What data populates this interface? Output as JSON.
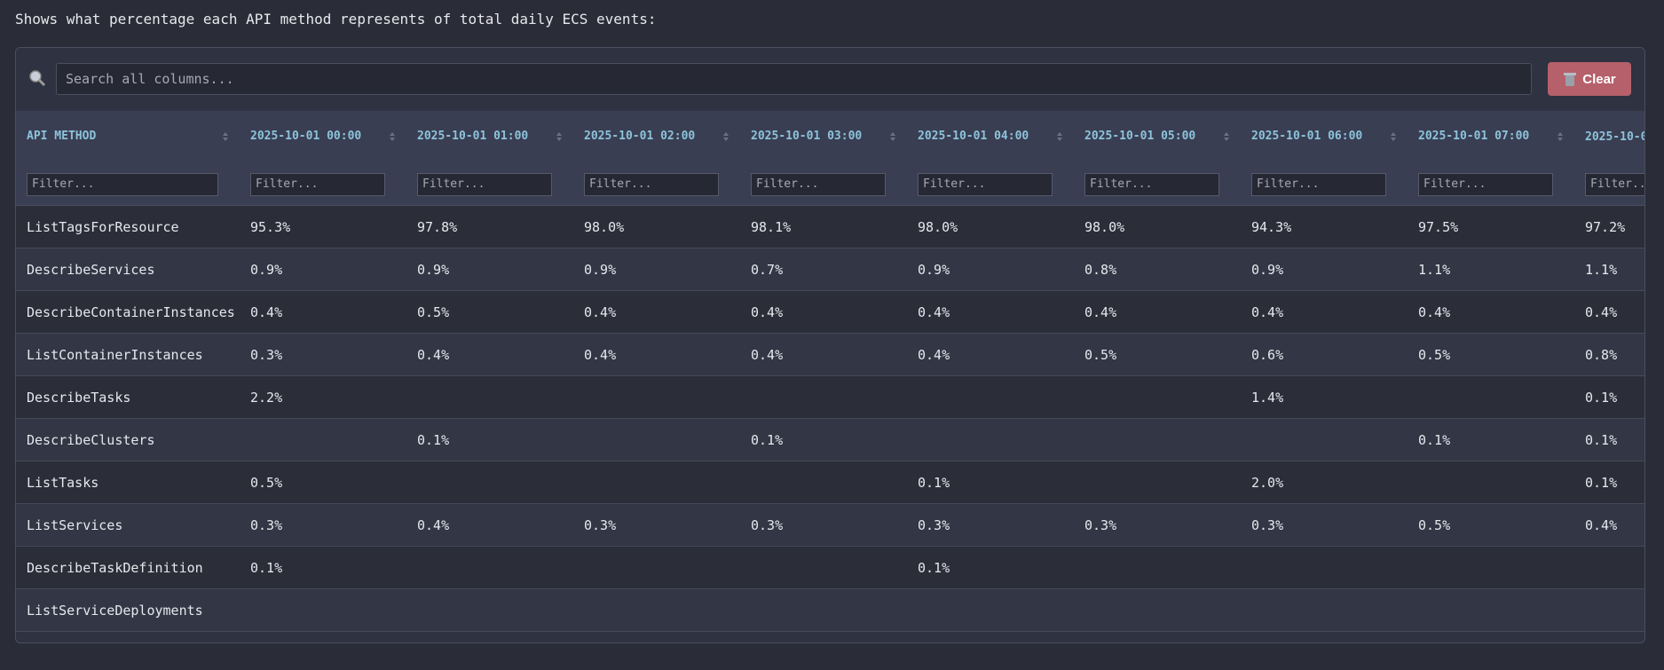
{
  "description": "Shows what percentage each API method represents of total daily ECS events:",
  "search": {
    "placeholder": "Search all columns...",
    "button": "Clear"
  },
  "table": {
    "headers": [
      "API METHOD",
      "2025-10-01 00:00",
      "2025-10-01 01:00",
      "2025-10-01 02:00",
      "2025-10-01 03:00",
      "2025-10-01 04:00",
      "2025-10-01 05:00",
      "2025-10-01 06:00",
      "2025-10-01 07:00",
      "2025-10-0"
    ],
    "filter_placeholder": "Filter...",
    "rows": [
      [
        "ListTagsForResource",
        "95.3%",
        "97.8%",
        "98.0%",
        "98.1%",
        "98.0%",
        "98.0%",
        "94.3%",
        "97.5%",
        "97.2%"
      ],
      [
        "DescribeServices",
        "0.9%",
        "0.9%",
        "0.9%",
        "0.7%",
        "0.9%",
        "0.8%",
        "0.9%",
        "1.1%",
        "1.1%"
      ],
      [
        "DescribeContainerInstances",
        "0.4%",
        "0.5%",
        "0.4%",
        "0.4%",
        "0.4%",
        "0.4%",
        "0.4%",
        "0.4%",
        "0.4%"
      ],
      [
        "ListContainerInstances",
        "0.3%",
        "0.4%",
        "0.4%",
        "0.4%",
        "0.4%",
        "0.5%",
        "0.6%",
        "0.5%",
        "0.8%"
      ],
      [
        "DescribeTasks",
        "2.2%",
        null,
        null,
        null,
        null,
        null,
        "1.4%",
        null,
        "0.1%"
      ],
      [
        "DescribeClusters",
        null,
        "0.1%",
        null,
        "0.1%",
        null,
        null,
        null,
        "0.1%",
        "0.1%"
      ],
      [
        "ListTasks",
        "0.5%",
        null,
        null,
        null,
        "0.1%",
        null,
        "2.0%",
        null,
        "0.1%"
      ],
      [
        "ListServices",
        "0.3%",
        "0.4%",
        "0.3%",
        "0.3%",
        "0.3%",
        "0.3%",
        "0.3%",
        "0.5%",
        "0.4%"
      ],
      [
        "DescribeTaskDefinition",
        "0.1%",
        null,
        null,
        null,
        "0.1%",
        null,
        null,
        null,
        null
      ],
      [
        "ListServiceDeployments",
        null,
        null,
        null,
        null,
        null,
        null,
        null,
        null,
        null
      ]
    ]
  }
}
